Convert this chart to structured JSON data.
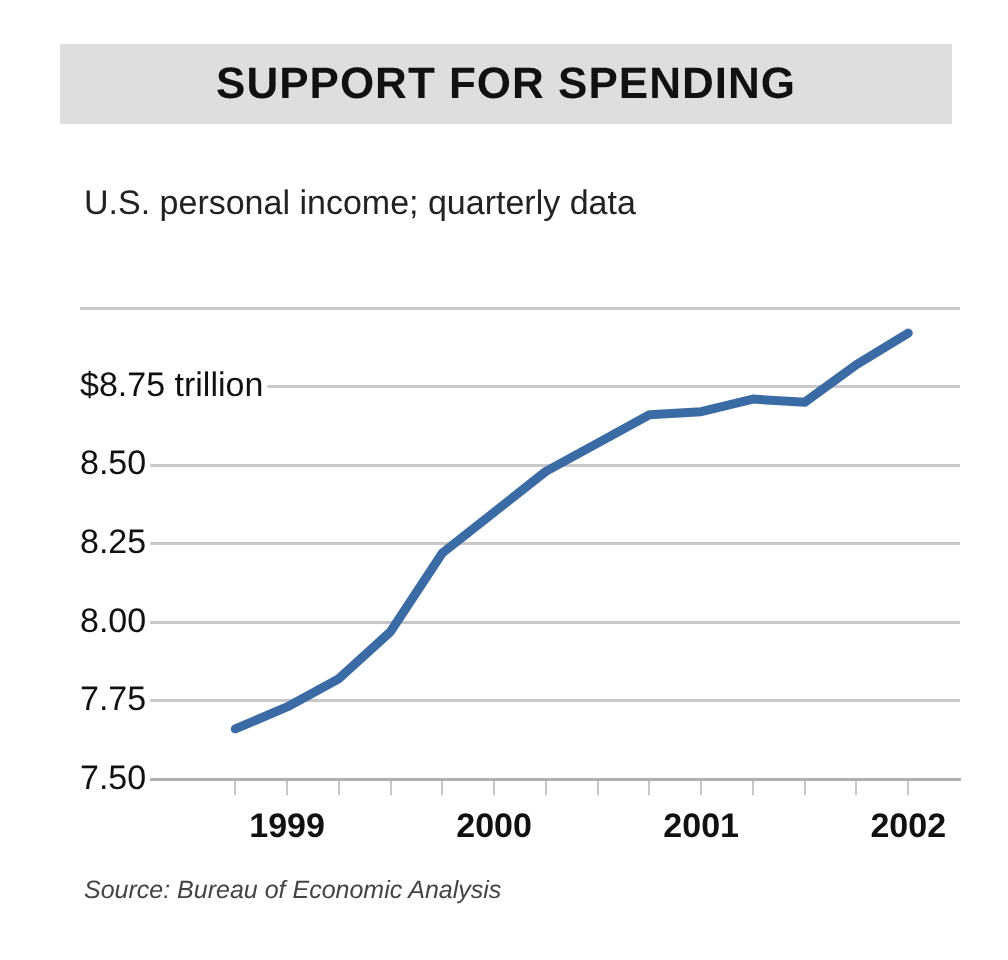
{
  "chart_data": {
    "type": "line",
    "title": "SUPPORT FOR SPENDING",
    "subtitle": "U.S. personal income; quarterly data",
    "annotations": [
      "Source: Bureau of Economic Analysis"
    ],
    "x": [
      1999,
      1999.25,
      1999.5,
      1999.75,
      2000,
      2000.25,
      2000.5,
      2000.75,
      2001,
      2001.25,
      2001.5,
      2001.75,
      2002,
      2002.25
    ],
    "series": [
      {
        "color": "#3a6ba5",
        "values": [
          7.66,
          7.73,
          7.82,
          7.97,
          8.22,
          8.35,
          8.48,
          8.57,
          8.66,
          8.67,
          8.71,
          8.7,
          8.82,
          8.92
        ]
      }
    ],
    "xlim": [
      1998.25,
      2002.5
    ],
    "xticks": [
      {
        "value": 1999,
        "label": null
      },
      {
        "value": 1999.25,
        "label": "1999"
      },
      {
        "value": 1999.5,
        "label": null
      },
      {
        "value": 1999.75,
        "label": null
      },
      {
        "value": 2000,
        "label": null
      },
      {
        "value": 2000.25,
        "label": "2000"
      },
      {
        "value": 2000.5,
        "label": null
      },
      {
        "value": 2000.75,
        "label": null
      },
      {
        "value": 2001,
        "label": null
      },
      {
        "value": 2001.25,
        "label": "2001"
      },
      {
        "value": 2001.5,
        "label": null
      },
      {
        "value": 2001.75,
        "label": null
      },
      {
        "value": 2002,
        "label": null
      },
      {
        "value": 2002.25,
        "label": "2002"
      }
    ],
    "ylim": [
      7.5,
      9.0
    ],
    "yticks": [
      {
        "value": 7.5,
        "label": "7.50"
      },
      {
        "value": 7.75,
        "label": "7.75"
      },
      {
        "value": 8.0,
        "label": "8.00"
      },
      {
        "value": 8.25,
        "label": "8.25"
      },
      {
        "value": 8.5,
        "label": "8.50"
      },
      {
        "value": 8.75,
        "label": "$8.75 trillion"
      },
      {
        "value": 9.0,
        "label": null
      }
    ],
    "grid": "y",
    "legend": false,
    "marker": "none",
    "line_style": "solid"
  }
}
